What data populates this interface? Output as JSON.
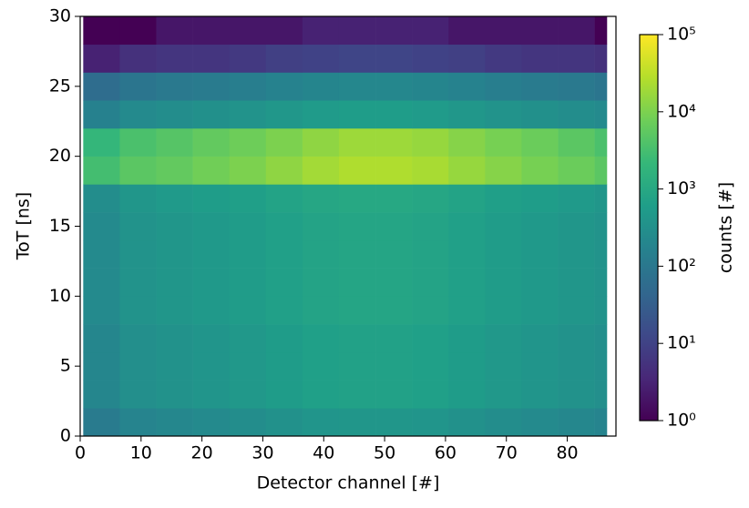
{
  "chart_data": {
    "type": "heatmap",
    "x_label": "Detector channel [#]",
    "y_label": "ToT [ns]",
    "colorbar_label": "counts [#]",
    "colormap": "viridis",
    "color_scale": "log",
    "x_bins": [
      0.5,
      6.5,
      12.5,
      18.5,
      24.5,
      30.5,
      36.5,
      42.5,
      48.5,
      54.5,
      60.5,
      66.5,
      72.5,
      78.5,
      84.5,
      86.5
    ],
    "y_bins": [
      0,
      2,
      4,
      6,
      8,
      10,
      12,
      14,
      16,
      18,
      20,
      22,
      24,
      26,
      28,
      30
    ],
    "values": [
      [
        120,
        180,
        210,
        240,
        270,
        330,
        390,
        420,
        420,
        390,
        330,
        270,
        240,
        210,
        180
      ],
      [
        200,
        300,
        350,
        400,
        450,
        550,
        650,
        700,
        700,
        650,
        550,
        450,
        400,
        350,
        300
      ],
      [
        200,
        300,
        350,
        400,
        450,
        550,
        650,
        700,
        700,
        650,
        550,
        450,
        400,
        350,
        300
      ],
      [
        200,
        300,
        350,
        400,
        450,
        550,
        650,
        700,
        700,
        650,
        550,
        450,
        400,
        350,
        300
      ],
      [
        240,
        360,
        420,
        480,
        540,
        660,
        780,
        840,
        840,
        780,
        660,
        540,
        480,
        420,
        360
      ],
      [
        240,
        360,
        420,
        480,
        540,
        660,
        780,
        840,
        840,
        780,
        660,
        540,
        480,
        420,
        360
      ],
      [
        240,
        360,
        420,
        480,
        540,
        660,
        780,
        840,
        840,
        780,
        660,
        540,
        480,
        420,
        360
      ],
      [
        240,
        360,
        420,
        480,
        540,
        660,
        780,
        840,
        840,
        780,
        660,
        540,
        480,
        420,
        360
      ],
      [
        280,
        420,
        490,
        560,
        630,
        770,
        910,
        980,
        980,
        910,
        770,
        630,
        560,
        490,
        420
      ],
      [
        3000,
        5000,
        6000,
        8000,
        10000,
        14000,
        20000,
        25000,
        25000,
        22000,
        16000,
        12000,
        9000,
        7000,
        5000
      ],
      [
        2000,
        3500,
        4500,
        6000,
        7500,
        10000,
        14000,
        18000,
        18000,
        16000,
        12000,
        9000,
        7000,
        5000,
        3500
      ],
      [
        160,
        240,
        280,
        320,
        360,
        440,
        520,
        560,
        560,
        520,
        440,
        360,
        320,
        280,
        240
      ],
      [
        60,
        90,
        105,
        120,
        135,
        165,
        195,
        210,
        210,
        195,
        165,
        135,
        120,
        105,
        90
      ],
      [
        3,
        5,
        6,
        6,
        7,
        9,
        10,
        11,
        11,
        10,
        9,
        7,
        6,
        6,
        5
      ],
      [
        1,
        1,
        2,
        2,
        2,
        2,
        3,
        3,
        3,
        3,
        2,
        2,
        2,
        2,
        1
      ]
    ],
    "xlim": [
      0,
      88
    ],
    "xticks": [
      0,
      10,
      20,
      30,
      40,
      50,
      60,
      70,
      80
    ],
    "ylim": [
      0,
      30
    ],
    "yticks": [
      0,
      5,
      10,
      15,
      20,
      25,
      30
    ],
    "clim": [
      1,
      100000
    ],
    "cticks": [
      {
        "value": 1,
        "label": "10⁰"
      },
      {
        "value": 10,
        "label": "10¹"
      },
      {
        "value": 100,
        "label": "10²"
      },
      {
        "value": 1000,
        "label": "10³"
      },
      {
        "value": 10000,
        "label": "10⁴"
      },
      {
        "value": 100000,
        "label": "10⁵"
      }
    ]
  }
}
